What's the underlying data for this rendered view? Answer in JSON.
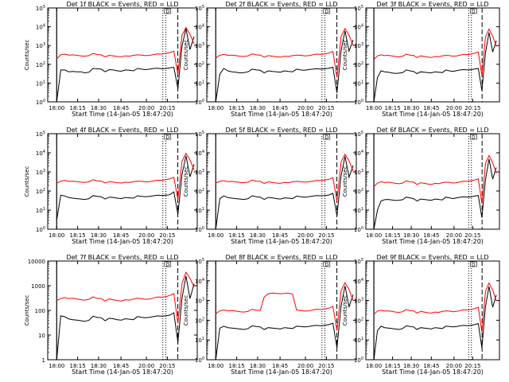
{
  "colors": {
    "events": "#000000",
    "lld": "#ff0000",
    "frame": "#000000",
    "background": "#ffffff"
  },
  "shared": {
    "xlabel": "Start Time (14-Jan-05 18:47:20)",
    "ylabel": "Counts/sec",
    "xticks": [
      "18:00",
      "18:15",
      "18:30",
      "18:45",
      "20:00",
      "20:15"
    ],
    "ylabels_exp": [
      "10^0",
      "10^1",
      "10^2",
      "10^3",
      "10^4",
      "10^5"
    ],
    "ylabels_plain": [
      "1",
      "10",
      "100",
      "1000",
      "10000"
    ],
    "flag_label": "D"
  },
  "chart_data": [
    {
      "type": "line",
      "title": "Det 1f BLACK = Events, RED = LLD",
      "ylim": [
        1,
        100000
      ],
      "yscale": "log",
      "ytick_style": "exp",
      "series": [
        {
          "name": "Events",
          "color": "#000000",
          "values": [
            0,
            50,
            50,
            40,
            42,
            40,
            40,
            35,
            38,
            60,
            58,
            55,
            40,
            52,
            50,
            45,
            43,
            50,
            48,
            45,
            60,
            55,
            52,
            55,
            60,
            62,
            58,
            60,
            65,
            70,
            5,
            900,
            8000,
            600,
            3000
          ]
        },
        {
          "name": "LLD",
          "color": "#ff0000",
          "values": [
            200,
            320,
            350,
            310,
            320,
            300,
            280,
            270,
            290,
            380,
            330,
            320,
            250,
            300,
            280,
            260,
            250,
            280,
            270,
            300,
            320,
            310,
            290,
            300,
            330,
            360,
            350,
            380,
            420,
            500,
            30,
            3500,
            9000,
            4000,
            1200
          ]
        }
      ]
    },
    {
      "type": "line",
      "title": "Det 2f BLACK = Events, RED = LLD",
      "ylim": [
        1,
        100000
      ],
      "yscale": "log",
      "ytick_style": "exp",
      "series": [
        {
          "name": "Events",
          "color": "#000000",
          "values": [
            1,
            30,
            60,
            45,
            40,
            38,
            35,
            36,
            40,
            55,
            50,
            48,
            35,
            45,
            42,
            40,
            38,
            45,
            42,
            40,
            55,
            50,
            48,
            52,
            55,
            58,
            55,
            58,
            62,
            70,
            3,
            500,
            6000,
            500,
            2000
          ]
        },
        {
          "name": "LLD",
          "color": "#ff0000",
          "values": [
            220,
            300,
            340,
            300,
            310,
            290,
            270,
            260,
            280,
            360,
            320,
            310,
            240,
            290,
            270,
            250,
            240,
            270,
            260,
            290,
            310,
            300,
            280,
            290,
            320,
            350,
            340,
            360,
            400,
            480,
            20,
            3000,
            8000,
            3500,
            1000
          ]
        }
      ]
    },
    {
      "type": "line",
      "title": "Det 3f BLACK = Events, RED = LLD",
      "ylim": [
        1,
        100000
      ],
      "yscale": "log",
      "ytick_style": "exp",
      "series": [
        {
          "name": "Events",
          "color": "#000000",
          "values": [
            1,
            20,
            45,
            40,
            38,
            35,
            33,
            34,
            36,
            50,
            45,
            42,
            32,
            40,
            38,
            36,
            35,
            40,
            38,
            36,
            50,
            45,
            42,
            46,
            50,
            52,
            50,
            52,
            56,
            60,
            4,
            400,
            5000,
            450,
            1800
          ]
        },
        {
          "name": "LLD",
          "color": "#ff0000",
          "values": [
            180,
            280,
            320,
            290,
            300,
            280,
            260,
            250,
            270,
            350,
            310,
            300,
            230,
            280,
            260,
            240,
            230,
            260,
            250,
            280,
            300,
            290,
            270,
            280,
            310,
            340,
            330,
            350,
            390,
            450,
            25,
            2800,
            7500,
            3200,
            900
          ]
        }
      ]
    },
    {
      "type": "line",
      "title": "Det 4f BLACK = Events, RED = LLD",
      "ylim": [
        1,
        100000
      ],
      "yscale": "log",
      "ytick_style": "exp",
      "series": [
        {
          "name": "Events",
          "color": "#000000",
          "values": [
            3,
            60,
            55,
            45,
            42,
            40,
            38,
            36,
            40,
            58,
            52,
            50,
            38,
            48,
            46,
            42,
            40,
            46,
            44,
            42,
            56,
            52,
            50,
            52,
            56,
            60,
            58,
            60,
            64,
            90,
            6,
            700,
            7000,
            550,
            2500
          ]
        },
        {
          "name": "LLD",
          "color": "#ff0000",
          "values": [
            250,
            330,
            360,
            320,
            330,
            310,
            290,
            280,
            300,
            390,
            340,
            330,
            260,
            310,
            290,
            270,
            260,
            290,
            280,
            310,
            330,
            320,
            300,
            310,
            340,
            370,
            360,
            390,
            430,
            520,
            35,
            3600,
            9500,
            4200,
            1300
          ]
        }
      ]
    },
    {
      "type": "line",
      "title": "Det 5f BLACK = Events, RED = LLD",
      "ylim": [
        1,
        100000
      ],
      "yscale": "log",
      "ytick_style": "exp",
      "series": [
        {
          "name": "Events",
          "color": "#000000",
          "values": [
            1,
            40,
            55,
            45,
            42,
            40,
            38,
            36,
            40,
            56,
            50,
            48,
            36,
            46,
            44,
            40,
            38,
            44,
            42,
            40,
            54,
            50,
            48,
            50,
            54,
            58,
            56,
            58,
            62,
            75,
            5,
            600,
            6500,
            520,
            2200
          ]
        },
        {
          "name": "LLD",
          "color": "#ff0000",
          "values": [
            260,
            320,
            350,
            310,
            320,
            300,
            280,
            270,
            290,
            370,
            330,
            320,
            250,
            300,
            280,
            260,
            250,
            280,
            270,
            300,
            320,
            310,
            290,
            300,
            330,
            360,
            350,
            370,
            410,
            500,
            30,
            3200,
            8500,
            3800,
            1100
          ]
        }
      ]
    },
    {
      "type": "line",
      "title": "Det 6f BLACK = Events, RED = LLD",
      "ylim": [
        1,
        100000
      ],
      "yscale": "log",
      "ytick_style": "exp",
      "series": [
        {
          "name": "Events",
          "color": "#000000",
          "values": [
            1,
            10,
            30,
            35,
            36,
            34,
            32,
            33,
            35,
            48,
            44,
            40,
            30,
            38,
            36,
            34,
            33,
            38,
            36,
            34,
            48,
            44,
            40,
            44,
            48,
            50,
            48,
            50,
            54,
            58,
            4,
            380,
            4800,
            420,
            1700
          ]
        },
        {
          "name": "LLD",
          "color": "#ff0000",
          "values": [
            170,
            260,
            300,
            280,
            290,
            270,
            250,
            240,
            260,
            340,
            300,
            290,
            220,
            270,
            250,
            230,
            220,
            250,
            240,
            270,
            290,
            280,
            260,
            270,
            300,
            330,
            320,
            340,
            380,
            440,
            22,
            2700,
            7200,
            3000,
            850
          ]
        }
      ]
    },
    {
      "type": "line",
      "title": "Det 7f BLACK = Events, RED = LLD",
      "ylim": [
        1,
        10000
      ],
      "yscale": "log",
      "ytick_style": "plain",
      "series": [
        {
          "name": "Events",
          "color": "#000000",
          "values": [
            1,
            60,
            55,
            45,
            42,
            40,
            38,
            36,
            40,
            58,
            52,
            50,
            38,
            48,
            46,
            42,
            40,
            46,
            44,
            42,
            56,
            52,
            50,
            52,
            56,
            60,
            58,
            60,
            64,
            80,
            5,
            300,
            2500,
            300,
            1200
          ]
        },
        {
          "name": "LLD",
          "color": "#ff0000",
          "values": [
            250,
            300,
            330,
            300,
            310,
            290,
            270,
            260,
            280,
            350,
            310,
            300,
            240,
            290,
            270,
            250,
            240,
            270,
            260,
            290,
            310,
            300,
            280,
            290,
            320,
            350,
            340,
            360,
            400,
            480,
            30,
            1200,
            3500,
            2000,
            900
          ]
        }
      ]
    },
    {
      "type": "line",
      "title": "Det 8f BLACK = Events, RED = LLD",
      "ylim": [
        1,
        100000
      ],
      "yscale": "log",
      "ytick_style": "exp",
      "series": [
        {
          "name": "Events",
          "color": "#000000",
          "values": [
            1,
            40,
            50,
            42,
            40,
            38,
            36,
            34,
            38,
            52,
            48,
            46,
            34,
            42,
            40,
            38,
            36,
            42,
            40,
            38,
            50,
            48,
            46,
            48,
            52,
            55,
            52,
            55,
            60,
            70,
            4,
            500,
            5500,
            480,
            2000
          ]
        },
        {
          "name": "LLD",
          "color": "#ff0000",
          "values": [
            210,
            300,
            330,
            300,
            310,
            290,
            270,
            260,
            280,
            360,
            320,
            310,
            1500,
            2200,
            2400,
            2300,
            2200,
            2300,
            2400,
            2100,
            330,
            310,
            290,
            300,
            330,
            360,
            350,
            370,
            410,
            500,
            30,
            3100,
            8000,
            3600,
            1000
          ]
        }
      ]
    },
    {
      "type": "line",
      "title": "Det 9f BLACK = Events, RED = LLD",
      "ylim": [
        1,
        100000
      ],
      "yscale": "log",
      "ytick_style": "exp",
      "series": [
        {
          "name": "Events",
          "color": "#000000",
          "values": [
            1,
            30,
            50,
            42,
            40,
            38,
            36,
            34,
            38,
            52,
            48,
            46,
            34,
            42,
            40,
            38,
            36,
            42,
            40,
            38,
            50,
            48,
            46,
            48,
            52,
            55,
            52,
            55,
            60,
            68,
            4,
            480,
            5200,
            460,
            1900
          ]
        },
        {
          "name": "LLD",
          "color": "#ff0000",
          "values": [
            200,
            290,
            320,
            290,
            300,
            280,
            260,
            250,
            270,
            350,
            310,
            300,
            230,
            280,
            260,
            240,
            230,
            260,
            250,
            280,
            300,
            290,
            270,
            280,
            310,
            340,
            330,
            350,
            390,
            460,
            25,
            2900,
            7800,
            3400,
            950
          ]
        }
      ]
    }
  ]
}
